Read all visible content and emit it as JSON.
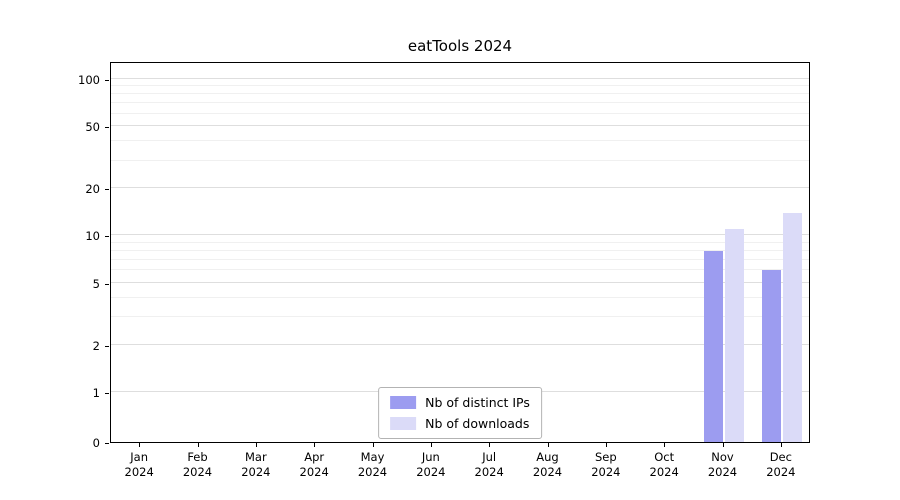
{
  "chart_data": {
    "type": "bar",
    "title": "eatTools 2024",
    "months": [
      "Jan",
      "Feb",
      "Mar",
      "Apr",
      "May",
      "Jun",
      "Jul",
      "Aug",
      "Sep",
      "Oct",
      "Nov",
      "Dec"
    ],
    "year": "2024",
    "series": [
      {
        "name": "Nb of distinct IPs",
        "color": "#9c9cf0",
        "values": [
          0,
          0,
          0,
          0,
          0,
          0,
          0,
          0,
          0,
          0,
          8,
          6
        ]
      },
      {
        "name": "Nb of downloads",
        "color": "#dbdbf8",
        "values": [
          0,
          0,
          0,
          0,
          0,
          0,
          0,
          0,
          0,
          0,
          11,
          14
        ]
      }
    ],
    "yticks": [
      0,
      1,
      2,
      5,
      10,
      20,
      50,
      100
    ],
    "minor_gridlines": [
      3,
      4,
      6,
      7,
      8,
      9,
      30,
      40,
      60,
      70,
      80,
      90
    ],
    "scale": "symlog",
    "ylim": [
      0,
      130
    ],
    "grid": true,
    "legend_position": "lower center"
  }
}
